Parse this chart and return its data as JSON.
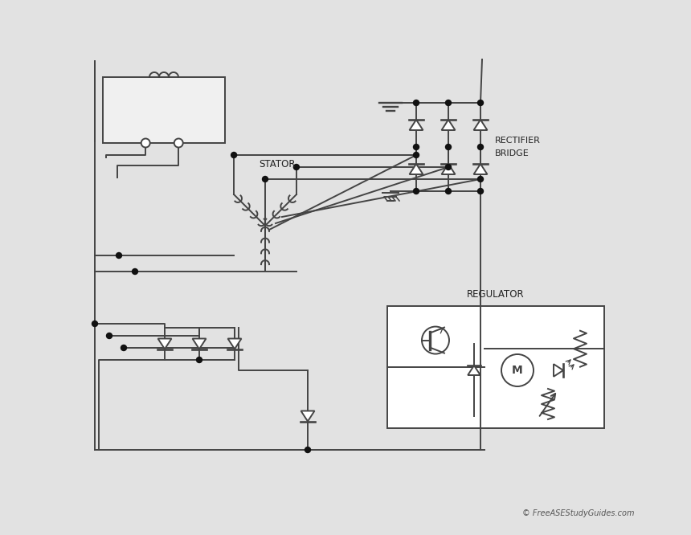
{
  "bg_color": "#e2e2e2",
  "line_color": "#444444",
  "fill_white": "#ffffff",
  "fill_gray": "#d0d0d0",
  "dot_color": "#111111",
  "text_color": "#222222",
  "lw": 1.4,
  "stator_label": "STATOR",
  "rect_label1": "RECTIFIER",
  "rect_label2": "BRIDGE",
  "regulator_label": "REGULATOR",
  "credit": "© FreeASEStudyGuides.com"
}
